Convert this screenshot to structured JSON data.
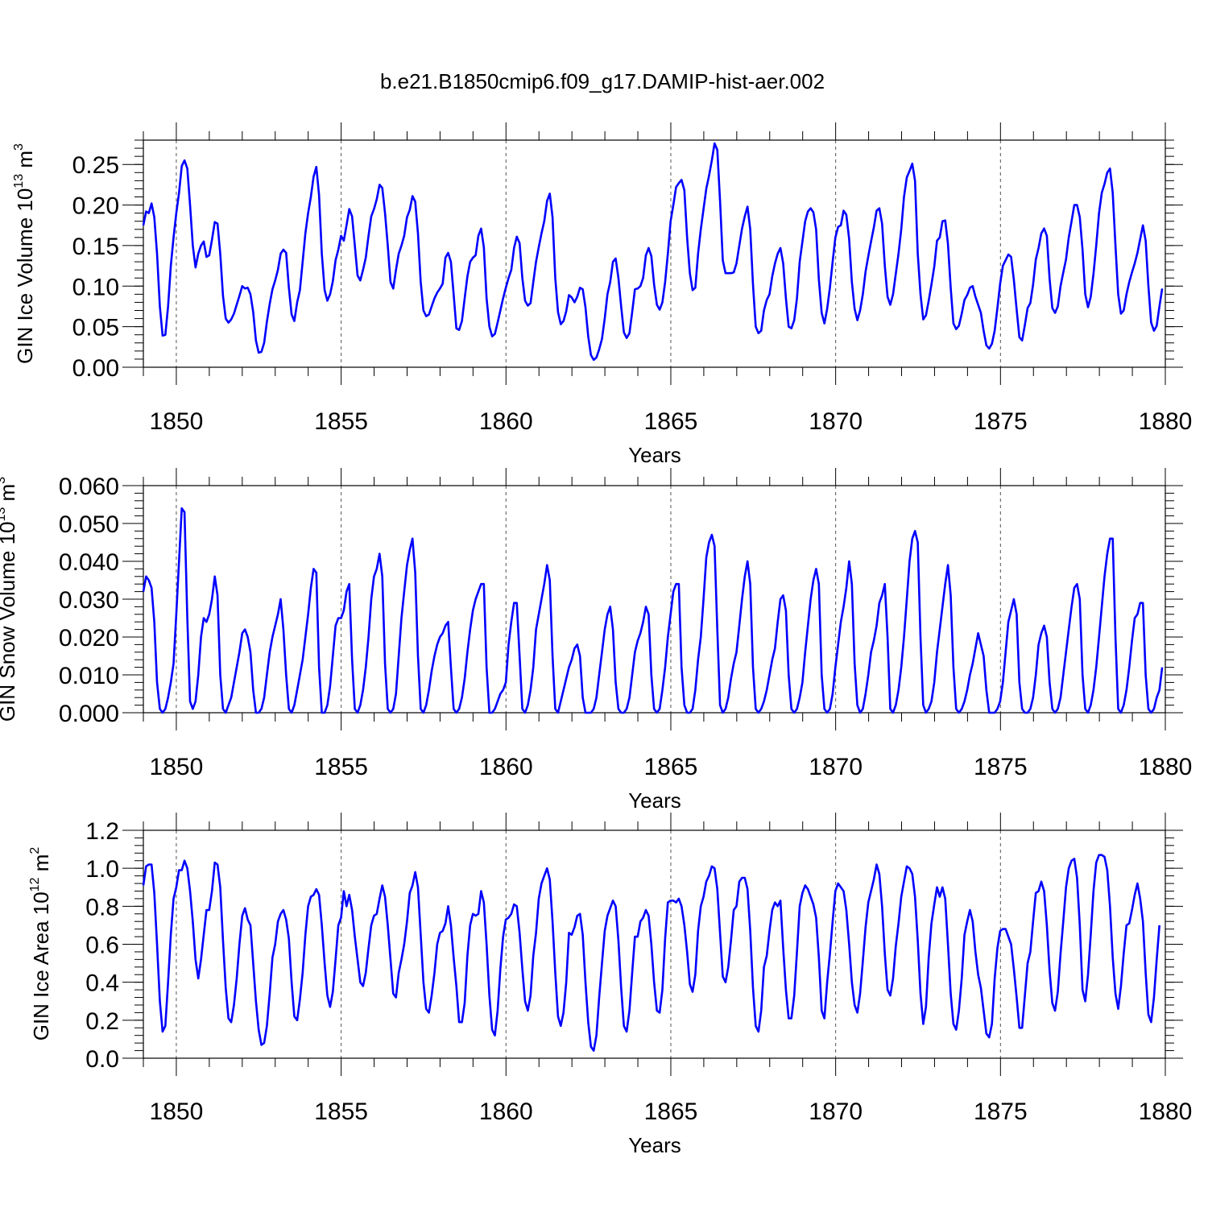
{
  "figure": {
    "title": "b.e21.B1850cmip6.f09_g17.DAMIP-hist-aer.002"
  },
  "chart_data": [
    {
      "type": "line",
      "xlabel": "Years",
      "ylabel": "GIN Ice Volume 10",
      "ylabel_exp": "13",
      "ylabel_unit": " m",
      "ylabel_unit_exp": "3",
      "xlim": [
        1849.0,
        1880.0
      ],
      "ylim": [
        0.0,
        0.28
      ],
      "xticks": [
        "1850",
        "1855",
        "1860",
        "1865",
        "1870",
        "1875",
        "1880"
      ],
      "yticks": [
        "0.00",
        "0.05",
        "0.10",
        "0.15",
        "0.20",
        "0.25"
      ],
      "ytick_values": [
        0.0,
        0.05,
        0.1,
        0.15,
        0.2,
        0.25
      ],
      "grid": "vertical-dashed",
      "line_color": "#0000ff",
      "x_start": 1849.0,
      "x_step": 0.0833,
      "values": [
        0.175,
        0.192,
        0.19,
        0.202,
        0.185,
        0.14,
        0.075,
        0.039,
        0.04,
        0.075,
        0.125,
        0.16,
        0.19,
        0.215,
        0.248,
        0.255,
        0.245,
        0.2,
        0.15,
        0.123,
        0.14,
        0.15,
        0.155,
        0.136,
        0.138,
        0.157,
        0.179,
        0.177,
        0.14,
        0.088,
        0.06,
        0.055,
        0.059,
        0.066,
        0.077,
        0.088,
        0.1,
        0.097,
        0.098,
        0.09,
        0.068,
        0.033,
        0.018,
        0.019,
        0.03,
        0.056,
        0.078,
        0.096,
        0.107,
        0.12,
        0.14,
        0.145,
        0.141,
        0.098,
        0.065,
        0.057,
        0.08,
        0.095,
        0.13,
        0.165,
        0.19,
        0.21,
        0.235,
        0.247,
        0.212,
        0.14,
        0.095,
        0.082,
        0.09,
        0.106,
        0.132,
        0.145,
        0.162,
        0.156,
        0.175,
        0.195,
        0.186,
        0.15,
        0.113,
        0.107,
        0.12,
        0.135,
        0.162,
        0.186,
        0.195,
        0.207,
        0.225,
        0.221,
        0.19,
        0.15,
        0.105,
        0.097,
        0.12,
        0.14,
        0.15,
        0.162,
        0.185,
        0.194,
        0.211,
        0.204,
        0.165,
        0.105,
        0.07,
        0.063,
        0.065,
        0.075,
        0.085,
        0.092,
        0.097,
        0.103,
        0.135,
        0.141,
        0.13,
        0.09,
        0.048,
        0.046,
        0.057,
        0.085,
        0.112,
        0.13,
        0.135,
        0.138,
        0.162,
        0.171,
        0.148,
        0.085,
        0.05,
        0.038,
        0.041,
        0.055,
        0.07,
        0.085,
        0.098,
        0.11,
        0.12,
        0.147,
        0.161,
        0.153,
        0.11,
        0.082,
        0.076,
        0.079,
        0.105,
        0.13,
        0.148,
        0.165,
        0.18,
        0.205,
        0.214,
        0.185,
        0.11,
        0.068,
        0.053,
        0.057,
        0.069,
        0.089,
        0.086,
        0.08,
        0.087,
        0.098,
        0.096,
        0.074,
        0.038,
        0.015,
        0.009,
        0.012,
        0.022,
        0.035,
        0.06,
        0.09,
        0.105,
        0.13,
        0.134,
        0.11,
        0.075,
        0.043,
        0.036,
        0.042,
        0.068,
        0.096,
        0.097,
        0.1,
        0.11,
        0.138,
        0.147,
        0.137,
        0.102,
        0.077,
        0.071,
        0.08,
        0.105,
        0.14,
        0.18,
        0.2,
        0.222,
        0.227,
        0.231,
        0.218,
        0.16,
        0.116,
        0.095,
        0.098,
        0.14,
        0.17,
        0.195,
        0.22,
        0.236,
        0.255,
        0.276,
        0.268,
        0.205,
        0.132,
        0.116,
        0.116,
        0.116,
        0.117,
        0.128,
        0.15,
        0.171,
        0.186,
        0.198,
        0.17,
        0.102,
        0.05,
        0.042,
        0.045,
        0.07,
        0.083,
        0.09,
        0.112,
        0.128,
        0.14,
        0.147,
        0.128,
        0.085,
        0.05,
        0.048,
        0.058,
        0.085,
        0.13,
        0.155,
        0.18,
        0.192,
        0.196,
        0.191,
        0.17,
        0.108,
        0.067,
        0.054,
        0.072,
        0.098,
        0.13,
        0.16,
        0.173,
        0.175,
        0.193,
        0.188,
        0.158,
        0.105,
        0.072,
        0.058,
        0.07,
        0.09,
        0.118,
        0.137,
        0.155,
        0.172,
        0.193,
        0.196,
        0.177,
        0.125,
        0.087,
        0.077,
        0.09,
        0.115,
        0.14,
        0.17,
        0.21,
        0.234,
        0.242,
        0.251,
        0.23,
        0.14,
        0.09,
        0.059,
        0.064,
        0.082,
        0.102,
        0.124,
        0.156,
        0.16,
        0.18,
        0.181,
        0.152,
        0.098,
        0.054,
        0.047,
        0.051,
        0.066,
        0.083,
        0.089,
        0.098,
        0.1,
        0.087,
        0.077,
        0.067,
        0.045,
        0.027,
        0.023,
        0.029,
        0.045,
        0.073,
        0.103,
        0.125,
        0.132,
        0.139,
        0.136,
        0.108,
        0.071,
        0.037,
        0.033,
        0.052,
        0.073,
        0.079,
        0.102,
        0.133,
        0.147,
        0.165,
        0.171,
        0.162,
        0.109,
        0.073,
        0.067,
        0.075,
        0.1,
        0.117,
        0.133,
        0.16,
        0.18,
        0.2,
        0.2,
        0.185,
        0.145,
        0.09,
        0.074,
        0.087,
        0.115,
        0.15,
        0.19,
        0.215,
        0.226,
        0.24,
        0.245,
        0.215,
        0.15,
        0.09,
        0.066,
        0.07,
        0.09,
        0.105,
        0.117,
        0.128,
        0.141,
        0.158,
        0.175,
        0.156,
        0.1,
        0.055,
        0.045,
        0.051,
        0.075,
        0.097
      ]
    },
    {
      "type": "line",
      "xlabel": "Years",
      "ylabel": "GIN Snow Volume 10",
      "ylabel_exp": "13",
      "ylabel_unit": " m",
      "ylabel_unit_exp": "3",
      "xlim": [
        1849.0,
        1880.0
      ],
      "ylim": [
        0.0,
        0.06
      ],
      "xticks": [
        "1850",
        "1855",
        "1860",
        "1865",
        "1870",
        "1875",
        "1880"
      ],
      "yticks": [
        "0.000",
        "0.010",
        "0.020",
        "0.030",
        "0.040",
        "0.050",
        "0.060"
      ],
      "ytick_values": [
        0.0,
        0.01,
        0.02,
        0.03,
        0.04,
        0.05,
        0.06
      ],
      "grid": "vertical-dashed",
      "line_color": "#0000ff",
      "x_start": 1849.0,
      "x_step": 0.0833,
      "values": [
        0.032,
        0.036,
        0.035,
        0.033,
        0.024,
        0.008,
        0.001,
        0.0,
        0.001,
        0.004,
        0.008,
        0.013,
        0.026,
        0.04,
        0.054,
        0.053,
        0.025,
        0.003,
        0.001,
        0.003,
        0.01,
        0.02,
        0.025,
        0.024,
        0.026,
        0.03,
        0.036,
        0.031,
        0.01,
        0.001,
        0.0,
        0.002,
        0.004,
        0.008,
        0.012,
        0.016,
        0.021,
        0.022,
        0.02,
        0.016,
        0.006,
        0.0,
        0.0,
        0.001,
        0.004,
        0.01,
        0.016,
        0.02,
        0.023,
        0.026,
        0.03,
        0.022,
        0.01,
        0.001,
        0.0,
        0.002,
        0.006,
        0.01,
        0.014,
        0.02,
        0.026,
        0.033,
        0.038,
        0.037,
        0.012,
        0.0,
        0.0,
        0.002,
        0.007,
        0.015,
        0.023,
        0.025,
        0.025,
        0.027,
        0.032,
        0.034,
        0.014,
        0.001,
        0.0,
        0.002,
        0.006,
        0.012,
        0.02,
        0.03,
        0.036,
        0.038,
        0.042,
        0.036,
        0.013,
        0.001,
        0.0,
        0.001,
        0.005,
        0.015,
        0.025,
        0.032,
        0.039,
        0.043,
        0.046,
        0.037,
        0.015,
        0.001,
        0.0,
        0.002,
        0.006,
        0.011,
        0.015,
        0.018,
        0.02,
        0.021,
        0.023,
        0.024,
        0.012,
        0.001,
        0.0,
        0.001,
        0.004,
        0.009,
        0.016,
        0.022,
        0.027,
        0.03,
        0.032,
        0.034,
        0.034,
        0.012,
        0.0,
        0.0,
        0.001,
        0.003,
        0.005,
        0.006,
        0.008,
        0.018,
        0.024,
        0.029,
        0.029,
        0.015,
        0.001,
        0.0,
        0.002,
        0.006,
        0.012,
        0.022,
        0.026,
        0.03,
        0.034,
        0.039,
        0.035,
        0.015,
        0.001,
        0.0,
        0.003,
        0.006,
        0.009,
        0.012,
        0.014,
        0.017,
        0.018,
        0.015,
        0.004,
        0.0,
        0.0,
        0.0,
        0.001,
        0.004,
        0.01,
        0.016,
        0.022,
        0.026,
        0.028,
        0.022,
        0.008,
        0.001,
        0.0,
        0.0,
        0.001,
        0.004,
        0.01,
        0.016,
        0.019,
        0.021,
        0.024,
        0.028,
        0.026,
        0.01,
        0.001,
        0.0,
        0.001,
        0.006,
        0.012,
        0.02,
        0.026,
        0.032,
        0.034,
        0.034,
        0.012,
        0.002,
        0.0,
        0.0,
        0.001,
        0.006,
        0.014,
        0.02,
        0.03,
        0.041,
        0.045,
        0.047,
        0.044,
        0.022,
        0.002,
        0.0,
        0.001,
        0.004,
        0.009,
        0.013,
        0.016,
        0.023,
        0.03,
        0.036,
        0.04,
        0.034,
        0.012,
        0.001,
        0.0,
        0.001,
        0.003,
        0.006,
        0.01,
        0.014,
        0.017,
        0.024,
        0.03,
        0.031,
        0.027,
        0.01,
        0.001,
        0.0,
        0.001,
        0.004,
        0.008,
        0.016,
        0.023,
        0.03,
        0.035,
        0.038,
        0.034,
        0.01,
        0.001,
        0.0,
        0.001,
        0.005,
        0.012,
        0.018,
        0.024,
        0.028,
        0.033,
        0.04,
        0.034,
        0.013,
        0.002,
        0.0,
        0.001,
        0.005,
        0.01,
        0.016,
        0.019,
        0.023,
        0.029,
        0.031,
        0.034,
        0.02,
        0.001,
        0.0,
        0.002,
        0.006,
        0.012,
        0.02,
        0.03,
        0.04,
        0.046,
        0.048,
        0.045,
        0.02,
        0.002,
        0.0,
        0.001,
        0.003,
        0.008,
        0.016,
        0.022,
        0.028,
        0.034,
        0.039,
        0.031,
        0.012,
        0.001,
        0.0,
        0.001,
        0.003,
        0.006,
        0.01,
        0.013,
        0.017,
        0.021,
        0.018,
        0.015,
        0.006,
        0.0,
        0.0,
        0.0,
        0.001,
        0.003,
        0.008,
        0.016,
        0.024,
        0.027,
        0.03,
        0.026,
        0.008,
        0.001,
        0.0,
        0.0,
        0.001,
        0.004,
        0.01,
        0.018,
        0.021,
        0.023,
        0.02,
        0.008,
        0.001,
        0.0,
        0.001,
        0.004,
        0.01,
        0.016,
        0.022,
        0.028,
        0.033,
        0.034,
        0.03,
        0.01,
        0.001,
        0.0,
        0.002,
        0.006,
        0.012,
        0.02,
        0.028,
        0.036,
        0.042,
        0.046,
        0.046,
        0.02,
        0.001,
        0.0,
        0.002,
        0.006,
        0.012,
        0.019,
        0.025,
        0.026,
        0.029,
        0.029,
        0.01,
        0.001,
        0.0,
        0.001,
        0.004,
        0.006,
        0.012
      ]
    },
    {
      "type": "line",
      "xlabel": "Years",
      "ylabel": "GIN Ice Area 10",
      "ylabel_exp": "12",
      "ylabel_unit": " m",
      "ylabel_unit_exp": "2",
      "xlim": [
        1849.0,
        1880.0
      ],
      "ylim": [
        0.0,
        1.2
      ],
      "xticks": [
        "1850",
        "1855",
        "1860",
        "1865",
        "1870",
        "1875",
        "1880"
      ],
      "yticks": [
        "0.0",
        "0.2",
        "0.4",
        "0.6",
        "0.8",
        "1.0",
        "1.2"
      ],
      "ytick_values": [
        0.0,
        0.2,
        0.4,
        0.6,
        0.8,
        1.0,
        1.2
      ],
      "grid": "vertical-dashed",
      "line_color": "#0000ff",
      "x_start": 1849.0,
      "x_step": 0.0833,
      "values": [
        0.91,
        1.01,
        1.02,
        1.02,
        0.87,
        0.6,
        0.3,
        0.14,
        0.17,
        0.4,
        0.65,
        0.84,
        0.9,
        0.99,
        0.99,
        1.04,
        1.0,
        0.88,
        0.72,
        0.52,
        0.42,
        0.52,
        0.65,
        0.78,
        0.78,
        0.88,
        1.03,
        1.02,
        0.9,
        0.62,
        0.37,
        0.21,
        0.19,
        0.28,
        0.42,
        0.6,
        0.75,
        0.79,
        0.73,
        0.7,
        0.5,
        0.3,
        0.15,
        0.07,
        0.08,
        0.17,
        0.34,
        0.53,
        0.6,
        0.72,
        0.76,
        0.78,
        0.73,
        0.63,
        0.4,
        0.22,
        0.2,
        0.31,
        0.45,
        0.65,
        0.8,
        0.85,
        0.86,
        0.89,
        0.86,
        0.7,
        0.5,
        0.33,
        0.27,
        0.35,
        0.52,
        0.7,
        0.74,
        0.88,
        0.8,
        0.86,
        0.78,
        0.64,
        0.52,
        0.4,
        0.38,
        0.45,
        0.58,
        0.7,
        0.75,
        0.76,
        0.84,
        0.91,
        0.85,
        0.7,
        0.52,
        0.34,
        0.32,
        0.45,
        0.52,
        0.6,
        0.72,
        0.87,
        0.91,
        0.98,
        0.9,
        0.65,
        0.4,
        0.26,
        0.24,
        0.33,
        0.45,
        0.6,
        0.66,
        0.67,
        0.71,
        0.8,
        0.7,
        0.53,
        0.38,
        0.19,
        0.19,
        0.29,
        0.54,
        0.7,
        0.76,
        0.75,
        0.76,
        0.88,
        0.82,
        0.6,
        0.33,
        0.15,
        0.12,
        0.25,
        0.47,
        0.64,
        0.73,
        0.74,
        0.76,
        0.81,
        0.8,
        0.66,
        0.47,
        0.3,
        0.25,
        0.33,
        0.54,
        0.66,
        0.84,
        0.92,
        0.96,
        1.0,
        0.94,
        0.72,
        0.45,
        0.22,
        0.17,
        0.24,
        0.4,
        0.66,
        0.65,
        0.69,
        0.75,
        0.76,
        0.65,
        0.4,
        0.19,
        0.06,
        0.04,
        0.12,
        0.32,
        0.5,
        0.67,
        0.75,
        0.79,
        0.83,
        0.8,
        0.62,
        0.37,
        0.17,
        0.14,
        0.25,
        0.45,
        0.64,
        0.64,
        0.72,
        0.74,
        0.78,
        0.75,
        0.6,
        0.4,
        0.25,
        0.24,
        0.36,
        0.63,
        0.82,
        0.83,
        0.83,
        0.82,
        0.84,
        0.8,
        0.7,
        0.56,
        0.39,
        0.35,
        0.44,
        0.67,
        0.8,
        0.85,
        0.93,
        0.96,
        1.01,
        1.0,
        0.89,
        0.66,
        0.43,
        0.4,
        0.48,
        0.62,
        0.78,
        0.8,
        0.93,
        0.95,
        0.95,
        0.89,
        0.67,
        0.37,
        0.17,
        0.14,
        0.25,
        0.48,
        0.54,
        0.67,
        0.78,
        0.82,
        0.8,
        0.83,
        0.58,
        0.36,
        0.21,
        0.21,
        0.33,
        0.56,
        0.8,
        0.87,
        0.91,
        0.89,
        0.85,
        0.81,
        0.74,
        0.53,
        0.25,
        0.21,
        0.4,
        0.55,
        0.72,
        0.88,
        0.92,
        0.9,
        0.88,
        0.78,
        0.6,
        0.4,
        0.28,
        0.24,
        0.34,
        0.51,
        0.69,
        0.82,
        0.88,
        0.94,
        1.02,
        0.97,
        0.8,
        0.55,
        0.36,
        0.33,
        0.42,
        0.59,
        0.71,
        0.85,
        0.93,
        1.01,
        1.0,
        0.97,
        0.85,
        0.62,
        0.34,
        0.18,
        0.27,
        0.53,
        0.71,
        0.81,
        0.9,
        0.85,
        0.9,
        0.84,
        0.6,
        0.34,
        0.18,
        0.15,
        0.25,
        0.42,
        0.65,
        0.72,
        0.78,
        0.72,
        0.56,
        0.44,
        0.37,
        0.25,
        0.13,
        0.11,
        0.18,
        0.42,
        0.58,
        0.67,
        0.68,
        0.68,
        0.64,
        0.6,
        0.47,
        0.32,
        0.16,
        0.16,
        0.33,
        0.5,
        0.56,
        0.72,
        0.87,
        0.88,
        0.93,
        0.88,
        0.7,
        0.46,
        0.29,
        0.25,
        0.35,
        0.55,
        0.72,
        0.9,
        1.0,
        1.04,
        1.05,
        0.95,
        0.7,
        0.36,
        0.3,
        0.44,
        0.65,
        0.88,
        1.03,
        1.07,
        1.07,
        1.06,
        0.99,
        0.8,
        0.53,
        0.34,
        0.26,
        0.38,
        0.55,
        0.7,
        0.71,
        0.78,
        0.86,
        0.92,
        0.84,
        0.72,
        0.45,
        0.23,
        0.19,
        0.32,
        0.52,
        0.7
      ]
    }
  ]
}
